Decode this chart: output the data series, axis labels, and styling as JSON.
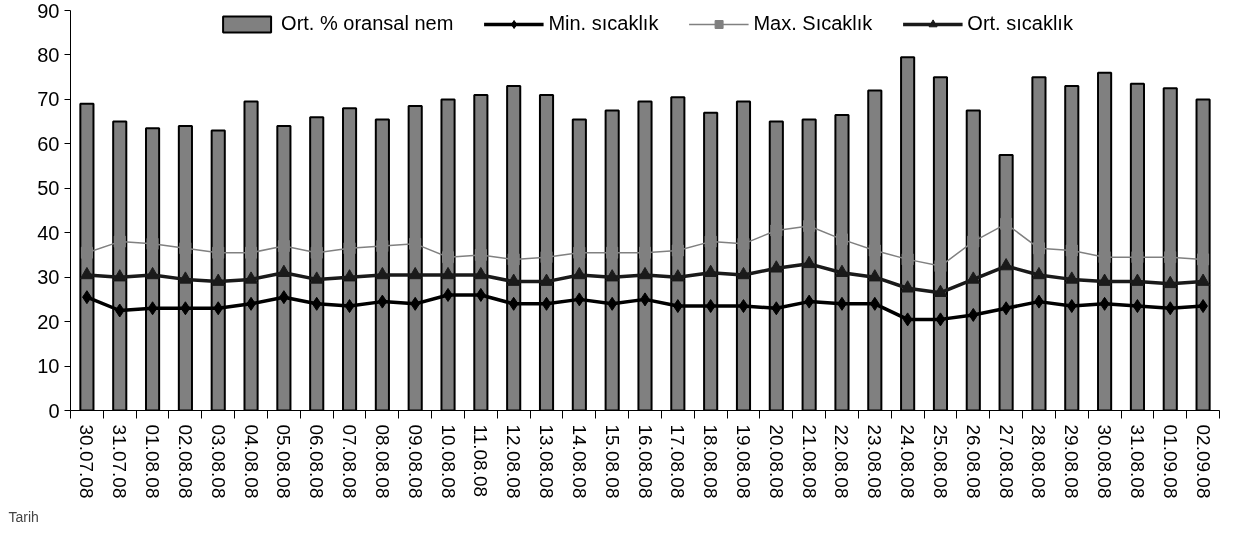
{
  "chart_data": {
    "type": "bar",
    "xlabel": "Tarih",
    "categories": [
      "30.07.08",
      "31.07.08",
      "01.08.08",
      "02.08.08",
      "03.08.08",
      "04.08.08",
      "05.08.08",
      "06.08.08",
      "07.08.08",
      "08.08.08",
      "09.08.08",
      "10.08.08",
      "11.08.08",
      "12.08.08",
      "13.08.08",
      "14.08.08",
      "15.08.08",
      "16.08.08",
      "17.08.08",
      "18.08.08",
      "19.08.08",
      "20.08.08",
      "21.08.08",
      "22.08.08",
      "23.08.08",
      "24.08.08",
      "25.08.08",
      "26.08.08",
      "27.08.08",
      "28.08.08",
      "29.08.08",
      "30.08.08",
      "31.08.08",
      "01.09.08",
      "02.09.08"
    ],
    "series": [
      {
        "name": "Ort. % oransal nem",
        "color": "#808080",
        "values": [
          69,
          65,
          63.5,
          64,
          63,
          69.5,
          64,
          66,
          68,
          65.5,
          68.5,
          70,
          71,
          73,
          71,
          65.5,
          67.5,
          69.5,
          70.5,
          67,
          69.5,
          65,
          65.5,
          66.5,
          72,
          79.5,
          75,
          67.5,
          57.5,
          75,
          73,
          76,
          73.5,
          72.5,
          70
        ]
      },
      {
        "name": "Min. sıcaklık",
        "type": "line",
        "color": "#000000",
        "marker": "diamond",
        "values": [
          25.5,
          22.5,
          23,
          23,
          23,
          24,
          25.5,
          24,
          23.5,
          24.5,
          24,
          26,
          26,
          24,
          24,
          25,
          24,
          25,
          23.5,
          23.5,
          23.5,
          23,
          24.5,
          24,
          24,
          20.5,
          20.5,
          21.5,
          23,
          24.5,
          23.5,
          24,
          23.5,
          23,
          23.5
        ]
      },
      {
        "name": "Max. Sıcaklık",
        "type": "line",
        "color": "#808080",
        "marker": "square",
        "values": [
          35.5,
          38,
          37.5,
          36.5,
          35.5,
          35.5,
          37,
          35.5,
          36.5,
          37,
          37.5,
          34.5,
          35,
          34,
          34.5,
          35.5,
          35.5,
          35.5,
          36,
          38,
          37.5,
          40.5,
          41.5,
          38.5,
          36,
          34,
          32.5,
          38,
          42,
          36.5,
          36,
          34.5,
          34.5,
          34.5,
          34
        ]
      },
      {
        "name": "Ort. sıcaklık",
        "type": "line",
        "color": "#1a1a1a",
        "marker": "triangle",
        "values": [
          30.5,
          30,
          30.5,
          29.5,
          29,
          29.5,
          31,
          29.5,
          30,
          30.5,
          30.5,
          30.5,
          30.5,
          29,
          29,
          30.5,
          30,
          30.5,
          30,
          31,
          30.5,
          32,
          33,
          31,
          30,
          27.5,
          26.5,
          29.5,
          32.5,
          30.5,
          29.5,
          29,
          29,
          28.5,
          29
        ]
      }
    ],
    "ylim": [
      0,
      90
    ],
    "yticks": [
      0,
      10,
      20,
      30,
      40,
      50,
      60,
      70,
      80,
      90
    ],
    "grid": false,
    "legend": "top",
    "line_style": "solid"
  }
}
